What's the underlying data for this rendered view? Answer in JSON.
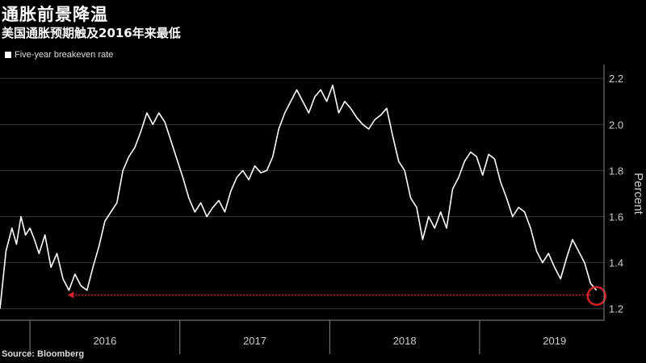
{
  "title": "通胀前景降温",
  "subtitle": "美国通胀预期触及2016年来最低",
  "source": "Source: Bloomberg",
  "colors": {
    "line": "#ffffff",
    "annotation": "#d2232a",
    "grid": "#3a3a3a"
  },
  "chart_data": {
    "type": "line",
    "title": "通胀前景降温",
    "subtitle": "美国通胀预期触及2016年来最低",
    "ylabel": "Percent",
    "ylim": [
      1.15,
      2.26
    ],
    "yticks": [
      1.2,
      1.4,
      1.6,
      1.8,
      2.0,
      2.2
    ],
    "ytick_labels": [
      "1.2",
      "1.4",
      "1.6",
      "1.8",
      "2.0",
      "2.2"
    ],
    "xlim": [
      2015.8,
      2019.83
    ],
    "xtick_labels": [
      "2016",
      "2017",
      "2018",
      "2019"
    ],
    "xtick_centers": [
      2016.5,
      2017.5,
      2018.5,
      2019.5
    ],
    "x_boundaries": [
      2016.0,
      2017.0,
      2018.0,
      2019.0
    ],
    "legend": {
      "position": "top-left",
      "entries": [
        "Five-year breakeven rate"
      ]
    },
    "grid": true,
    "series": [
      {
        "name": "Five-year breakeven rate",
        "x": [
          2015.8,
          2015.84,
          2015.88,
          2015.91,
          2015.94,
          2015.97,
          2016.0,
          2016.03,
          2016.06,
          2016.1,
          2016.14,
          2016.18,
          2016.22,
          2016.26,
          2016.3,
          2016.34,
          2016.38,
          2016.42,
          2016.46,
          2016.5,
          2016.54,
          2016.58,
          2016.62,
          2016.66,
          2016.7,
          2016.74,
          2016.78,
          2016.82,
          2016.86,
          2016.9,
          2016.94,
          2016.98,
          2017.02,
          2017.06,
          2017.1,
          2017.14,
          2017.18,
          2017.22,
          2017.26,
          2017.3,
          2017.34,
          2017.38,
          2017.42,
          2017.46,
          2017.5,
          2017.54,
          2017.58,
          2017.62,
          2017.66,
          2017.7,
          2017.74,
          2017.78,
          2017.82,
          2017.86,
          2017.9,
          2017.94,
          2017.98,
          2018.02,
          2018.06,
          2018.1,
          2018.14,
          2018.18,
          2018.22,
          2018.26,
          2018.3,
          2018.34,
          2018.38,
          2018.42,
          2018.46,
          2018.5,
          2018.54,
          2018.58,
          2018.62,
          2018.66,
          2018.7,
          2018.74,
          2018.78,
          2018.82,
          2018.86,
          2018.9,
          2018.94,
          2018.98,
          2019.02,
          2019.06,
          2019.1,
          2019.14,
          2019.18,
          2019.22,
          2019.26,
          2019.3,
          2019.34,
          2019.38,
          2019.42,
          2019.46,
          2019.5,
          2019.54,
          2019.58,
          2019.62,
          2019.66,
          2019.7,
          2019.74,
          2019.78
        ],
        "values": [
          1.2,
          1.45,
          1.55,
          1.48,
          1.6,
          1.52,
          1.55,
          1.5,
          1.44,
          1.52,
          1.38,
          1.44,
          1.33,
          1.28,
          1.35,
          1.3,
          1.28,
          1.38,
          1.47,
          1.58,
          1.62,
          1.66,
          1.8,
          1.86,
          1.9,
          1.97,
          2.05,
          2.0,
          2.05,
          2.01,
          1.93,
          1.85,
          1.77,
          1.68,
          1.62,
          1.66,
          1.6,
          1.64,
          1.67,
          1.62,
          1.71,
          1.77,
          1.8,
          1.76,
          1.82,
          1.79,
          1.8,
          1.86,
          1.98,
          2.05,
          2.1,
          2.15,
          2.1,
          2.05,
          2.12,
          2.15,
          2.1,
          2.17,
          2.05,
          2.1,
          2.07,
          2.03,
          2.0,
          1.98,
          2.02,
          2.04,
          2.07,
          1.95,
          1.84,
          1.8,
          1.68,
          1.64,
          1.5,
          1.6,
          1.55,
          1.62,
          1.55,
          1.72,
          1.77,
          1.84,
          1.88,
          1.86,
          1.78,
          1.87,
          1.85,
          1.75,
          1.68,
          1.6,
          1.64,
          1.62,
          1.55,
          1.45,
          1.4,
          1.44,
          1.38,
          1.33,
          1.42,
          1.5,
          1.45,
          1.4,
          1.31,
          1.28
        ]
      }
    ],
    "annotation": {
      "type": "arrow",
      "from_x": 2019.74,
      "to_x": 2016.25,
      "y": 1.26,
      "marker_x": 2019.78,
      "marker_y": 1.28
    }
  }
}
